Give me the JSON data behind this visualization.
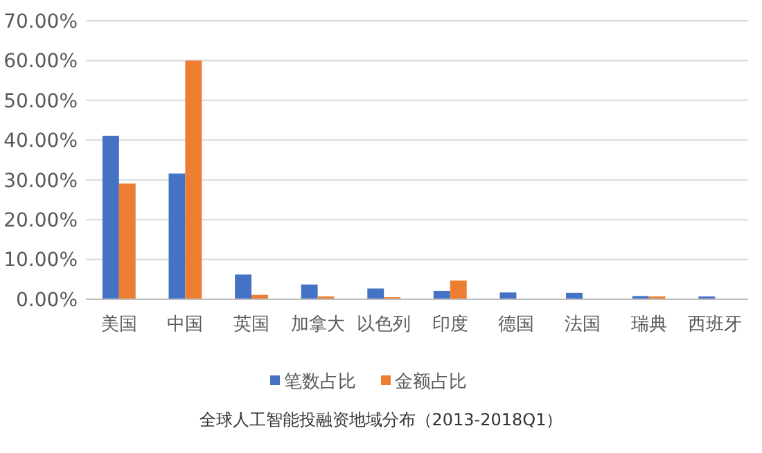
{
  "chart_data": {
    "type": "bar",
    "title": "全球人工智能投融资地域分布（2013-2018Q1）",
    "categories": [
      "美国",
      "中国",
      "英国",
      "加拿大",
      "以色列",
      "印度",
      "德国",
      "法国",
      "瑞典",
      "西班牙"
    ],
    "series": [
      {
        "name": "笔数占比",
        "color": "#4472c4",
        "values": [
          41.1,
          31.6,
          6.2,
          3.7,
          2.7,
          2.1,
          1.7,
          1.6,
          0.8,
          0.7
        ]
      },
      {
        "name": "金额占比",
        "color": "#ed7d31",
        "values": [
          29.1,
          60.0,
          1.1,
          0.7,
          0.5,
          4.7,
          null,
          null,
          0.7,
          null
        ]
      }
    ],
    "ylim": [
      0,
      70
    ],
    "yticks": [
      {
        "value": 0,
        "label": "0.00%"
      },
      {
        "value": 10,
        "label": "10.00%"
      },
      {
        "value": 20,
        "label": "20.00%"
      },
      {
        "value": 30,
        "label": "30.00%"
      },
      {
        "value": 40,
        "label": "40.00%"
      },
      {
        "value": 50,
        "label": "50.00%"
      },
      {
        "value": 60,
        "label": "60.00%"
      },
      {
        "value": 70,
        "label": "70.00%"
      }
    ],
    "grid": "y",
    "legend": "bottom"
  }
}
